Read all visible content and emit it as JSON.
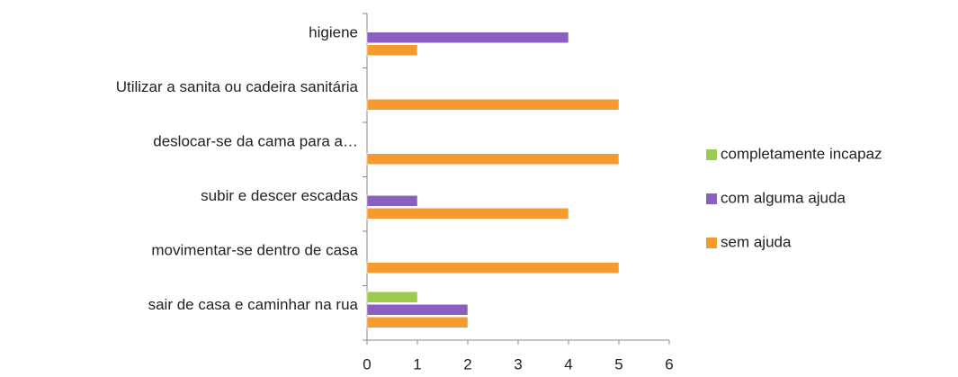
{
  "chart_data": {
    "type": "bar",
    "orientation": "horizontal",
    "categories": [
      "sair de casa e caminhar na rua",
      "movimentar-se dentro de casa",
      "subir e descer escadas",
      "deslocar-se da cama para a…",
      "Utilizar a sanita ou cadeira sanitária",
      "higiene"
    ],
    "series": [
      {
        "name": "sem ajuda",
        "color": "#f59a2f",
        "values": [
          2,
          5,
          4,
          5,
          5,
          1
        ]
      },
      {
        "name": "com alguma ajuda",
        "color": "#8a5fc0",
        "values": [
          2,
          0,
          1,
          0,
          0,
          4
        ]
      },
      {
        "name": "completamente incapaz",
        "color": "#9ccc4f",
        "values": [
          1,
          0,
          0,
          0,
          0,
          0
        ]
      }
    ],
    "xlim": [
      0,
      6
    ],
    "xticks": [
      0,
      1,
      2,
      3,
      4,
      5,
      6
    ],
    "legend": "right"
  }
}
